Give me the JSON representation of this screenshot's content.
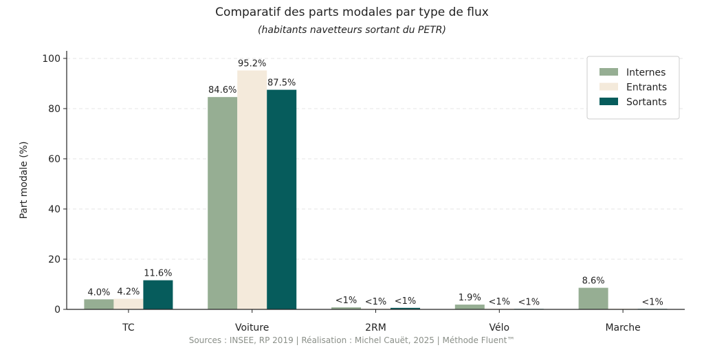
{
  "chart_data": {
    "type": "bar",
    "title": "Comparatif des parts modales par type de flux",
    "subtitle": "(habitants navetteurs sortant du PETR)",
    "ylabel": "Part modale (%)",
    "xlabel": "",
    "ylim": [
      0,
      103
    ],
    "yticks": [
      "0",
      "20",
      "40",
      "60",
      "80",
      "100"
    ],
    "categories": [
      "TC",
      "Voiture",
      "2RM",
      "Vélo",
      "Marche"
    ],
    "series": [
      {
        "name": "Internes",
        "color": "#96ae93",
        "values": [
          4.0,
          84.6,
          0.8,
          1.9,
          8.6
        ],
        "labels": [
          "4.0%",
          "84.6%",
          "<1%",
          "1.9%",
          "8.6%"
        ]
      },
      {
        "name": "Entrants",
        "color": "#f4eadb",
        "values": [
          4.2,
          95.2,
          0.3,
          0.3,
          0.3
        ],
        "labels": [
          "4.2%",
          "95.2%",
          "<1%",
          "<1%",
          ""
        ]
      },
      {
        "name": "Sortants",
        "color": "#065c5c",
        "values": [
          11.6,
          87.5,
          0.6,
          0.2,
          0.2
        ],
        "labels": [
          "11.6%",
          "87.5%",
          "<1%",
          "<1%",
          "<1%"
        ]
      }
    ],
    "grid": "horizontal dashed",
    "legend_position": "top-right",
    "source": "Sources : INSEE, RP 2019 | Réalisation : Michel Cauët, 2025 | Méthode Fluent™"
  }
}
